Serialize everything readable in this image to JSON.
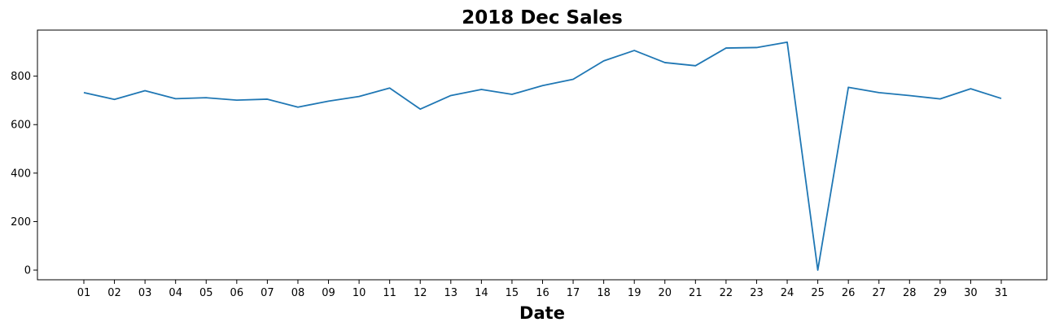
{
  "chart_data": {
    "type": "line",
    "title": "2018 Dec Sales",
    "xlabel": "Date",
    "ylabel": "",
    "categories": [
      "01",
      "02",
      "03",
      "04",
      "05",
      "06",
      "07",
      "08",
      "09",
      "10",
      "11",
      "12",
      "13",
      "14",
      "15",
      "16",
      "17",
      "18",
      "19",
      "20",
      "21",
      "22",
      "23",
      "24",
      "25",
      "26",
      "27",
      "28",
      "29",
      "30",
      "31"
    ],
    "series": [
      {
        "values": [
          732,
          704,
          740,
          707,
          711,
          701,
          705,
          672,
          697,
          716,
          751,
          664,
          720,
          745,
          725,
          761,
          787,
          863,
          906,
          856,
          843,
          916,
          918,
          940,
          0,
          754,
          732,
          720,
          706,
          748,
          708
        ]
      }
    ],
    "ylim": [
      -40,
      990
    ],
    "yticks": [
      0,
      200,
      400,
      600,
      800
    ],
    "grid": false,
    "line_color": "#1f77b4"
  }
}
